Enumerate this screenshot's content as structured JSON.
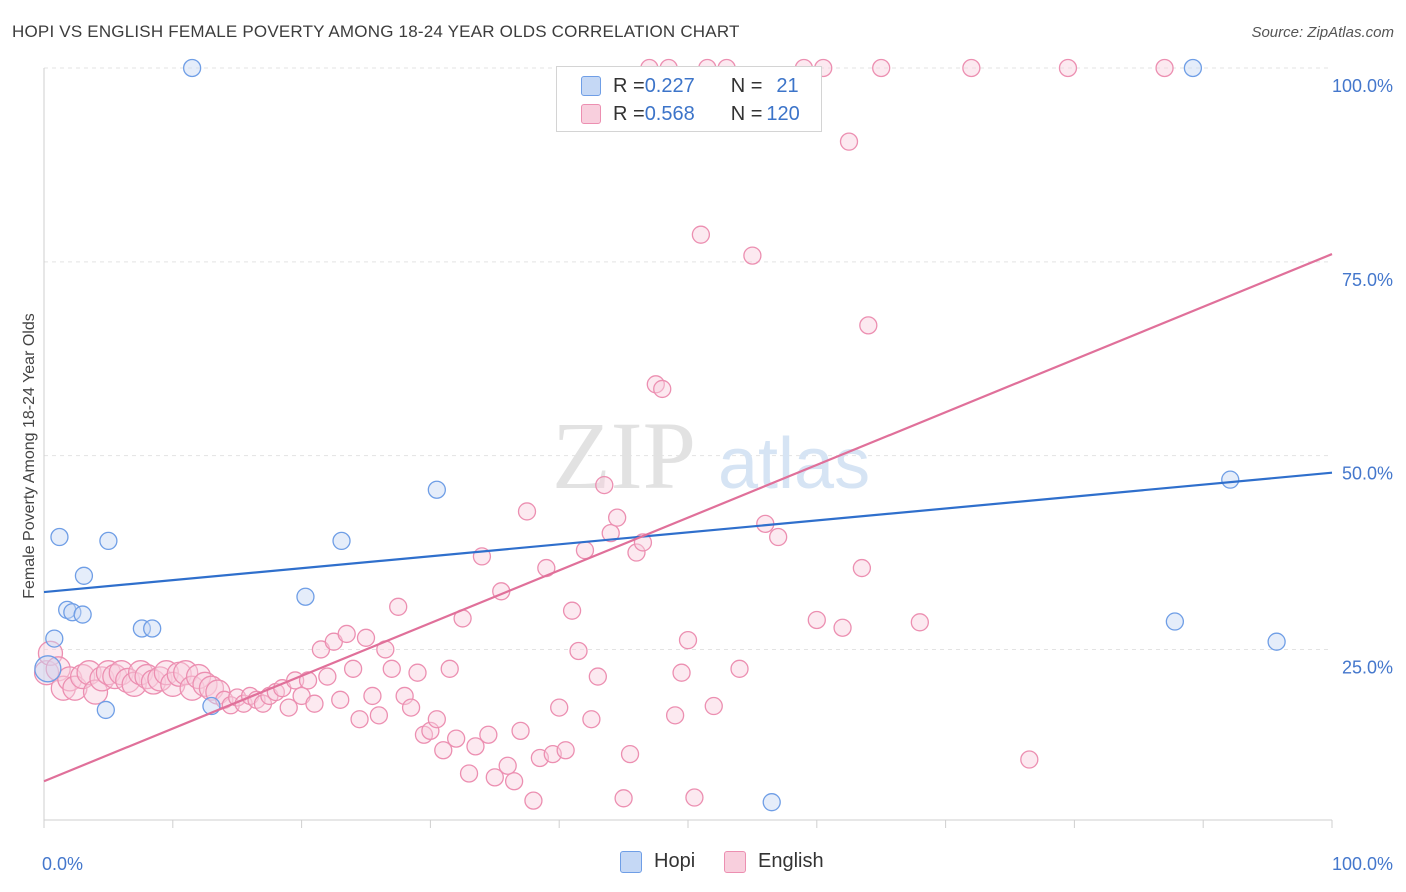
{
  "title": "HOPI VS ENGLISH FEMALE POVERTY AMONG 18-24 YEAR OLDS CORRELATION CHART",
  "source": "Source: ZipAtlas.com",
  "watermark": {
    "zip": "ZIP",
    "atlas": "atlas"
  },
  "legend": {
    "rows": [
      {
        "r_label": "R = ",
        "r_value": "0.227",
        "n_label": "N = ",
        "n_value": "21"
      },
      {
        "r_label": "R = ",
        "r_value": "0.568",
        "n_label": "N = ",
        "n_value": "120"
      }
    ]
  },
  "bottom_legend": [
    "Hopi",
    "English"
  ],
  "chart_data": {
    "type": "scatter",
    "ylabel": "Female Poverty Among 18-24 Year Olds",
    "xlabel": "",
    "x_tick_labels": [
      "0.0%",
      "100.0%"
    ],
    "y_tick_labels": [
      "100.0%",
      "75.0%",
      "50.0%",
      "25.0%"
    ],
    "xlim": [
      0,
      100
    ],
    "ylim": [
      3,
      100
    ],
    "grid": "horizontal dashed",
    "legend_position": "top-center",
    "colors": {
      "hopi": "#6f9ee6",
      "hopi_fill": "#c5d8f5",
      "english": "#ec8fb1",
      "english_fill": "#f8cfdd",
      "hopi_line": "#2f6fcc",
      "english_line": "#e0709a"
    },
    "series": [
      {
        "name": "Hopi",
        "r": 0.227,
        "n": 21,
        "trend": [
          [
            0,
            32.4
          ],
          [
            100,
            47.8
          ]
        ],
        "points": [
          [
            0.3,
            22.5
          ],
          [
            0.8,
            26.4
          ],
          [
            1.2,
            39.5
          ],
          [
            1.8,
            30.1
          ],
          [
            2.2,
            29.8
          ],
          [
            3.0,
            29.5
          ],
          [
            3.1,
            34.5
          ],
          [
            4.8,
            17.2
          ],
          [
            5.0,
            39.0
          ],
          [
            7.6,
            27.7
          ],
          [
            8.4,
            27.7
          ],
          [
            11.5,
            100
          ],
          [
            13.0,
            17.7
          ],
          [
            20.3,
            31.8
          ],
          [
            23.1,
            39.0
          ],
          [
            30.5,
            45.6
          ],
          [
            56.5,
            5.3
          ],
          [
            87.8,
            28.6
          ],
          [
            89.2,
            100
          ],
          [
            92.1,
            46.9
          ],
          [
            95.7,
            26.0
          ]
        ]
      },
      {
        "name": "English",
        "r": 0.568,
        "n": 120,
        "trend": [
          [
            0,
            8.0
          ],
          [
            100,
            76.0
          ]
        ],
        "points": [
          [
            0.2,
            22.0
          ],
          [
            0.5,
            24.5
          ],
          [
            1.1,
            22.5
          ],
          [
            1.5,
            20.0
          ],
          [
            2.0,
            21.2
          ],
          [
            2.4,
            20.0
          ],
          [
            3.0,
            21.5
          ],
          [
            3.5,
            22.0
          ],
          [
            4.0,
            19.5
          ],
          [
            4.5,
            21.2
          ],
          [
            5.0,
            22.0
          ],
          [
            5.5,
            21.5
          ],
          [
            6.0,
            22.0
          ],
          [
            6.5,
            21.0
          ],
          [
            7.0,
            20.5
          ],
          [
            7.5,
            22.0
          ],
          [
            8.0,
            21.5
          ],
          [
            8.5,
            20.8
          ],
          [
            9.0,
            21.2
          ],
          [
            9.5,
            22.0
          ],
          [
            10.0,
            20.5
          ],
          [
            10.5,
            21.8
          ],
          [
            11.0,
            22.0
          ],
          [
            11.5,
            20.0
          ],
          [
            12.0,
            21.5
          ],
          [
            12.5,
            20.5
          ],
          [
            13.0,
            20.0
          ],
          [
            13.5,
            19.5
          ],
          [
            14.0,
            18.5
          ],
          [
            14.5,
            17.8
          ],
          [
            15.0,
            18.8
          ],
          [
            15.5,
            18.0
          ],
          [
            16.0,
            19.0
          ],
          [
            16.5,
            18.5
          ],
          [
            17.0,
            18.0
          ],
          [
            17.5,
            19.0
          ],
          [
            18.0,
            19.5
          ],
          [
            18.5,
            20.0
          ],
          [
            19.0,
            17.5
          ],
          [
            19.5,
            21.0
          ],
          [
            20.0,
            19.0
          ],
          [
            20.5,
            21.0
          ],
          [
            21.0,
            18.0
          ],
          [
            21.5,
            25.0
          ],
          [
            22.0,
            21.5
          ],
          [
            22.5,
            26.0
          ],
          [
            23.0,
            18.5
          ],
          [
            23.5,
            27.0
          ],
          [
            24.0,
            22.5
          ],
          [
            24.5,
            16.0
          ],
          [
            25.0,
            26.5
          ],
          [
            25.5,
            19.0
          ],
          [
            26.0,
            16.5
          ],
          [
            26.5,
            25.0
          ],
          [
            27.0,
            22.5
          ],
          [
            27.5,
            30.5
          ],
          [
            28.0,
            19.0
          ],
          [
            28.5,
            17.5
          ],
          [
            29.0,
            22.0
          ],
          [
            29.5,
            14.0
          ],
          [
            30.0,
            14.5
          ],
          [
            30.5,
            16.0
          ],
          [
            31.0,
            12.0
          ],
          [
            31.5,
            22.5
          ],
          [
            32.0,
            13.5
          ],
          [
            32.5,
            29.0
          ],
          [
            33.0,
            9.0
          ],
          [
            33.5,
            12.5
          ],
          [
            34.0,
            37.0
          ],
          [
            34.5,
            14.0
          ],
          [
            35.0,
            8.5
          ],
          [
            35.5,
            32.5
          ],
          [
            36.0,
            10.0
          ],
          [
            36.5,
            8.0
          ],
          [
            37.0,
            14.5
          ],
          [
            37.5,
            42.8
          ],
          [
            38.0,
            5.5
          ],
          [
            38.5,
            11.0
          ],
          [
            39.0,
            35.5
          ],
          [
            39.5,
            11.5
          ],
          [
            40.0,
            17.5
          ],
          [
            40.5,
            12.0
          ],
          [
            41.0,
            30.0
          ],
          [
            41.5,
            24.8
          ],
          [
            42.0,
            37.8
          ],
          [
            42.5,
            16.0
          ],
          [
            43.0,
            21.5
          ],
          [
            43.5,
            46.2
          ],
          [
            44.0,
            40.0
          ],
          [
            44.5,
            42.0
          ],
          [
            45.0,
            5.8
          ],
          [
            45.5,
            11.5
          ],
          [
            46.0,
            37.5
          ],
          [
            46.5,
            38.8
          ],
          [
            47.0,
            100
          ],
          [
            47.5,
            59.2
          ],
          [
            48.0,
            58.6
          ],
          [
            48.5,
            100
          ],
          [
            49.0,
            16.5
          ],
          [
            49.5,
            22.0
          ],
          [
            50.0,
            26.2
          ],
          [
            50.5,
            5.9
          ],
          [
            51.0,
            78.5
          ],
          [
            51.5,
            100
          ],
          [
            52.0,
            17.7
          ],
          [
            53.0,
            100
          ],
          [
            54.0,
            22.5
          ],
          [
            55.0,
            75.8
          ],
          [
            56.0,
            41.2
          ],
          [
            57.0,
            39.5
          ],
          [
            59.0,
            100
          ],
          [
            60.0,
            28.8
          ],
          [
            60.5,
            100
          ],
          [
            62.0,
            27.8
          ],
          [
            62.5,
            90.5
          ],
          [
            63.5,
            35.5
          ],
          [
            64.0,
            66.8
          ],
          [
            65.0,
            100
          ],
          [
            68.0,
            28.5
          ],
          [
            72.0,
            100
          ],
          [
            76.5,
            10.8
          ],
          [
            79.5,
            100
          ],
          [
            87.0,
            100
          ]
        ]
      }
    ]
  }
}
